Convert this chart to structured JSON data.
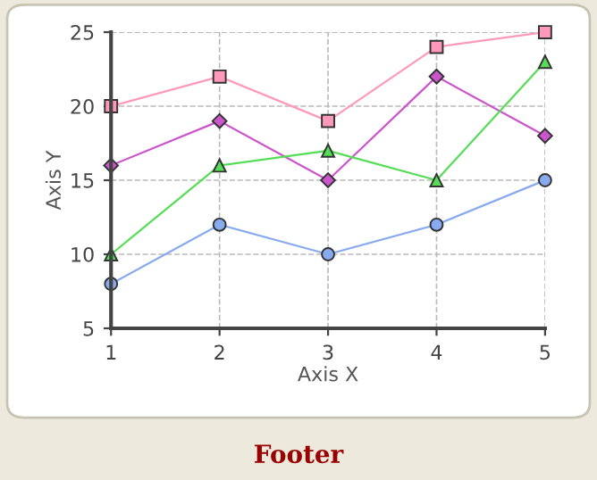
{
  "chart_data": {
    "type": "line",
    "xlabel": "Axis X",
    "ylabel": "Axis Y",
    "x": [
      1,
      2,
      3,
      4,
      5
    ],
    "xlim": [
      1,
      5
    ],
    "xticks": [
      1,
      2,
      3,
      4,
      5
    ],
    "ylim": [
      5,
      25
    ],
    "yticks": [
      5,
      10,
      15,
      20,
      25
    ],
    "grid": true,
    "annotations": [
      "Footer"
    ],
    "series": [
      {
        "color": "#ff99bb",
        "marker": "square",
        "values": [
          20,
          22,
          19,
          24,
          25
        ]
      },
      {
        "color": "#cc55cc",
        "marker": "diamond",
        "values": [
          16,
          19,
          15,
          22,
          18
        ]
      },
      {
        "color": "#55dd55",
        "marker": "triangle",
        "values": [
          10,
          16,
          17,
          15,
          23
        ]
      },
      {
        "color": "#88aaee",
        "marker": "circle",
        "values": [
          8,
          12,
          10,
          12,
          15
        ]
      }
    ]
  }
}
